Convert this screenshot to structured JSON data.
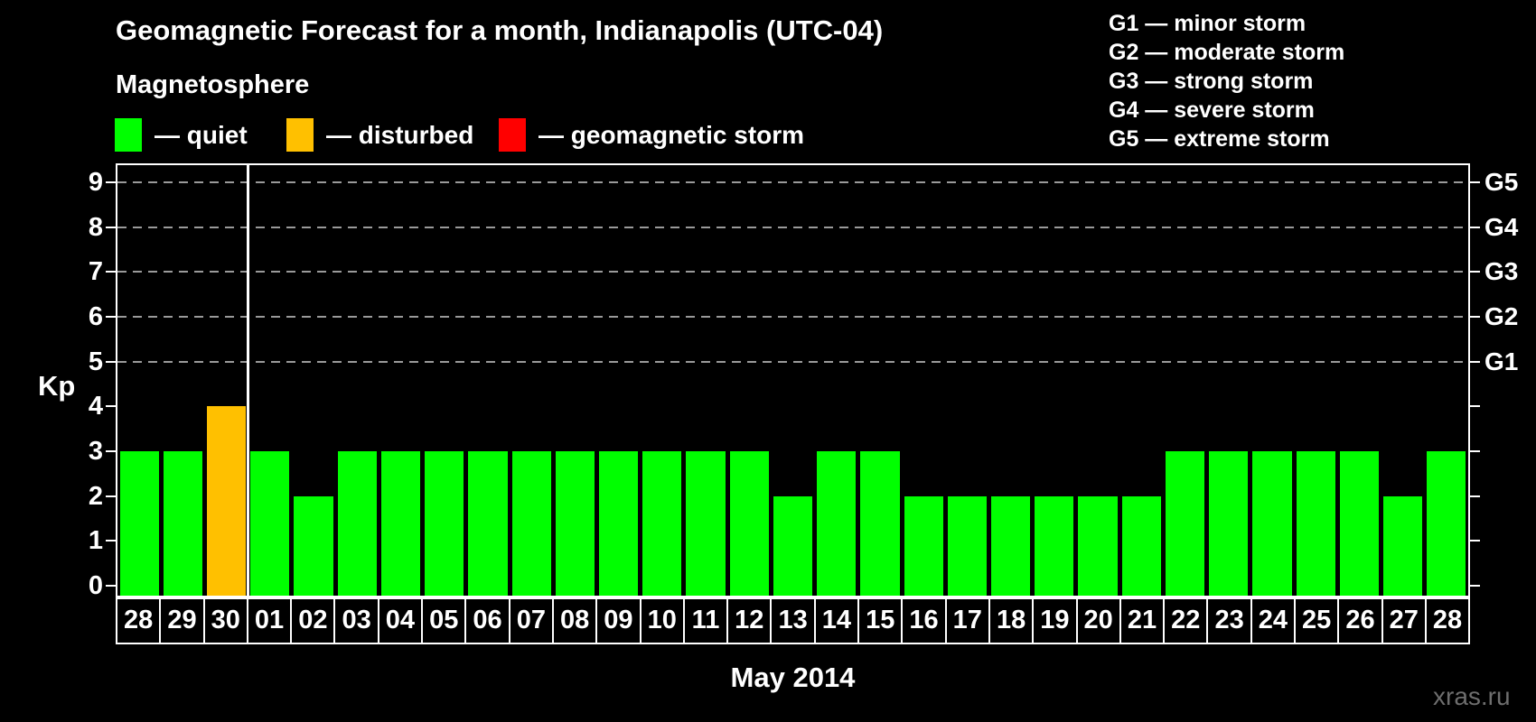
{
  "title": "Geomagnetic Forecast for a month, Indianapolis (UTC-04)",
  "legend": {
    "title": "Magnetosphere",
    "items": [
      {
        "name": "quiet",
        "label": "— quiet",
        "color": "#00ff00"
      },
      {
        "name": "disturbed",
        "label": "— disturbed",
        "color": "#ffc000"
      },
      {
        "name": "storm",
        "label": "— geomagnetic storm",
        "color": "#ff0000"
      }
    ]
  },
  "g_scale_legend": [
    "G1 — minor storm",
    "G2 — moderate storm",
    "G3 — strong storm",
    "G4 — severe storm",
    "G5 — extreme storm"
  ],
  "watermark": "xras.ru",
  "chart_data": {
    "type": "bar",
    "title": "Geomagnetic Forecast for a month, Indianapolis (UTC-04)",
    "xlabel": "May 2014",
    "ylabel": "Kp",
    "ylim": [
      0,
      9
    ],
    "yticks": [
      0,
      1,
      2,
      3,
      4,
      5,
      6,
      7,
      8,
      9
    ],
    "gridlines_at": [
      5,
      6,
      7,
      8,
      9
    ],
    "grid": "dashed horizontal lines at Kp 5–9 only",
    "legend_position": "top-left above plot; G-scale legend top-right",
    "categories": [
      "28",
      "29",
      "30",
      "01",
      "02",
      "03",
      "04",
      "05",
      "06",
      "07",
      "08",
      "09",
      "10",
      "11",
      "12",
      "13",
      "14",
      "15",
      "16",
      "17",
      "18",
      "19",
      "20",
      "21",
      "22",
      "23",
      "24",
      "25",
      "26",
      "27",
      "28"
    ],
    "values": [
      3,
      3,
      4,
      3,
      2,
      3,
      3,
      3,
      3,
      3,
      3,
      3,
      3,
      3,
      3,
      2,
      3,
      3,
      2,
      2,
      2,
      2,
      2,
      2,
      3,
      3,
      3,
      3,
      3,
      2,
      3
    ],
    "states": [
      "quiet",
      "quiet",
      "disturbed",
      "quiet",
      "quiet",
      "quiet",
      "quiet",
      "quiet",
      "quiet",
      "quiet",
      "quiet",
      "quiet",
      "quiet",
      "quiet",
      "quiet",
      "quiet",
      "quiet",
      "quiet",
      "quiet",
      "quiet",
      "quiet",
      "quiet",
      "quiet",
      "quiet",
      "quiet",
      "quiet",
      "quiet",
      "quiet",
      "quiet",
      "quiet",
      "quiet"
    ],
    "state_colors": {
      "quiet": "#00ff00",
      "disturbed": "#ffc000",
      "storm": "#ff0000"
    },
    "divider_after_bar": 3,
    "right_axis_labels": [
      {
        "kp": 5,
        "label": "G1"
      },
      {
        "kp": 6,
        "label": "G2"
      },
      {
        "kp": 7,
        "label": "G3"
      },
      {
        "kp": 8,
        "label": "G4"
      },
      {
        "kp": 9,
        "label": "G5"
      }
    ]
  }
}
